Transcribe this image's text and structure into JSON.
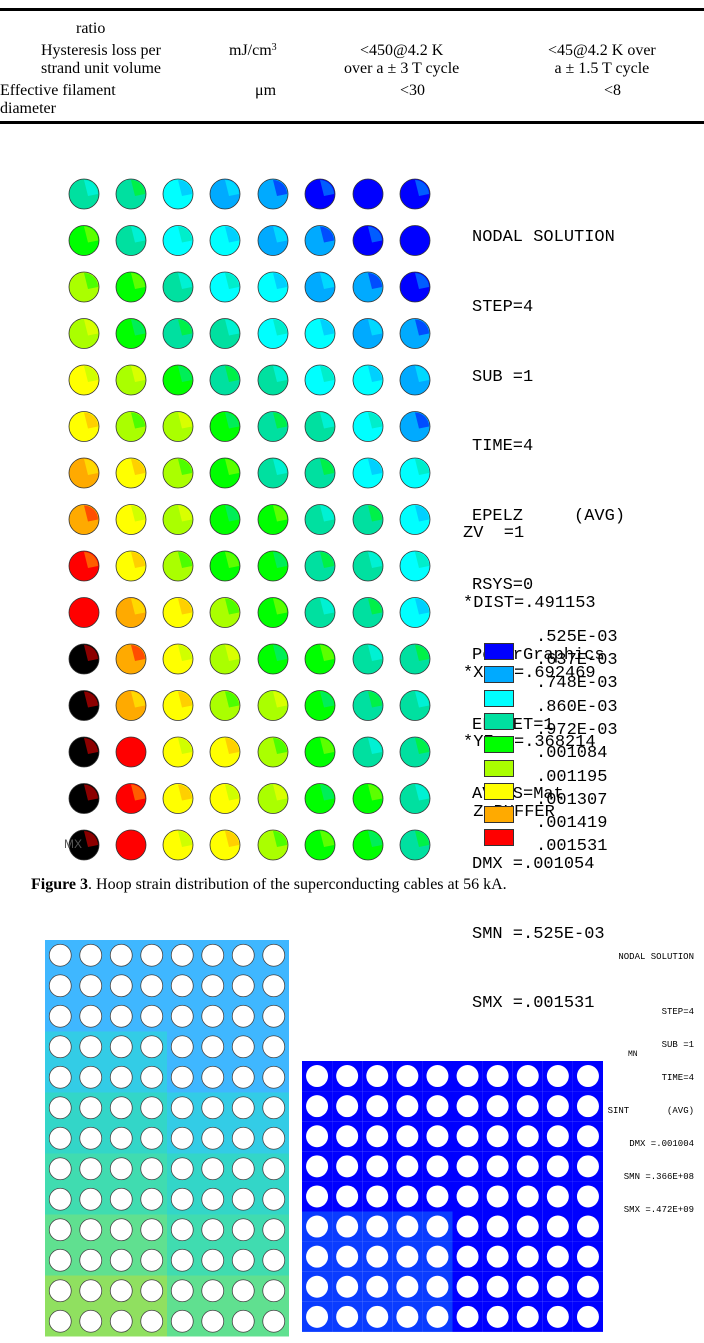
{
  "table": {
    "rows": [
      {
        "param_lines": [
          "ratio"
        ],
        "unit": "",
        "col1_lines": [],
        "col2_lines": []
      },
      {
        "param_lines": [
          "Hysteresis loss per",
          "strand unit volume"
        ],
        "unit_base": "mJ/cm",
        "unit_sup": "3",
        "col1_lines": [
          "<450@4.2 K",
          "over a ± 3 T cycle"
        ],
        "col2_lines": [
          "<45@4.2 K over",
          "a ± 1.5 T cycle"
        ]
      },
      {
        "param_lines": [
          "Effective filament",
          "diameter"
        ],
        "unit": "μm",
        "col1_lines": [
          "<30"
        ],
        "col2_lines": [
          "<8"
        ]
      }
    ]
  },
  "figure3": {
    "annotation_lines": [
      "NODAL SOLUTION",
      "STEP=4",
      "SUB =1",
      "TIME=4",
      "EPELZ     (AVG)",
      "RSYS=0",
      "PowerGraphics",
      "EFACET=1",
      "AVRES=Mat",
      "DMX =.001054",
      "SMN =.525E-03",
      "SMX =.001531"
    ],
    "view_lines": [
      "ZV  =1",
      "*DIST=.491153",
      "*XF  =.692469",
      "*YF  =.368214",
      " Z-BUFFER"
    ],
    "legend_top_label": ".525E-03",
    "legend": [
      {
        "label": ".637E-03",
        "color": "#0000ff"
      },
      {
        "label": ".748E-03",
        "color": "#00aaff"
      },
      {
        "label": ".860E-03",
        "color": "#00ffff"
      },
      {
        "label": ".972E-03",
        "color": "#00e0a0"
      },
      {
        "label": ".001084",
        "color": "#00ff00"
      },
      {
        "label": ".001195",
        "color": "#aaff00"
      },
      {
        "label": ".001307",
        "color": "#ffff00"
      },
      {
        "label": ".001419",
        "color": "#ffaa00"
      },
      {
        "label": ".001531",
        "color": "#ff0000"
      }
    ],
    "mx_label": "MX",
    "grid_levels": [
      [
        3,
        3,
        2,
        1,
        1,
        0,
        0,
        0
      ],
      [
        4,
        3,
        2,
        2,
        1,
        1,
        0,
        0
      ],
      [
        5,
        4,
        3,
        2,
        2,
        1,
        1,
        0
      ],
      [
        5,
        4,
        3,
        3,
        2,
        2,
        1,
        1
      ],
      [
        6,
        5,
        4,
        3,
        3,
        2,
        2,
        1
      ],
      [
        6,
        5,
        5,
        4,
        3,
        3,
        2,
        1
      ],
      [
        7,
        6,
        5,
        4,
        3,
        3,
        2,
        2
      ],
      [
        7,
        6,
        5,
        4,
        4,
        3,
        3,
        2
      ],
      [
        8,
        6,
        5,
        4,
        4,
        3,
        3,
        2
      ],
      [
        8,
        7,
        6,
        5,
        4,
        3,
        3,
        2
      ],
      [
        9,
        7,
        6,
        5,
        4,
        4,
        3,
        3
      ],
      [
        9,
        7,
        6,
        5,
        5,
        4,
        3,
        3
      ],
      [
        9,
        8,
        6,
        6,
        5,
        4,
        3,
        3
      ],
      [
        9,
        8,
        6,
        6,
        5,
        4,
        4,
        3
      ],
      [
        9,
        8,
        6,
        6,
        5,
        4,
        4,
        3
      ]
    ],
    "caption_label": "Figure 3",
    "caption_text": ". Hoop strain distribution of the superconducting cables at 56 kA."
  },
  "figure4": {
    "annotation_lines": [
      "NODAL SOLUTION",
      "",
      "STEP=4",
      "SUB =1",
      "TIME=4",
      "SINT       (AVG)",
      "DMX =.001004",
      "SMN =.366E+08",
      "SMX =.472E+09"
    ],
    "mn_label": "MN"
  }
}
